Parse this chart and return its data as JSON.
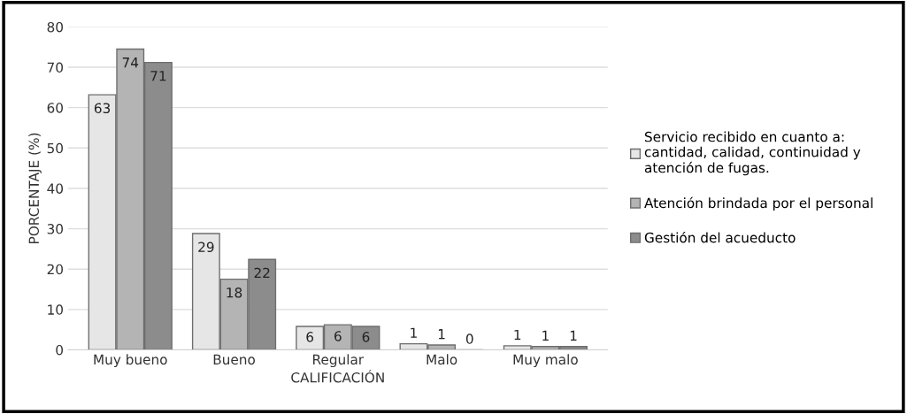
{
  "chart_data": {
    "type": "bar",
    "xlabel": "CALIFICACIÓN",
    "ylabel": "PORCENTAJE (%)",
    "categories": [
      "Muy bueno",
      "Bueno",
      "Regular",
      "Malo",
      "Muy malo"
    ],
    "series": [
      {
        "name": "Servicio recibido en cuanto a:\ncantidad, calidad, continuidad y\natención de fugas.",
        "color": "#e6e6e6",
        "values": [
          63.2,
          28.8,
          5.8,
          1.5,
          1.0
        ],
        "value_labels": [
          "63",
          "29",
          "6",
          "1",
          "1"
        ]
      },
      {
        "name": "Atención brindada por el personal",
        "color": "#b4b4b4",
        "values": [
          74.5,
          17.5,
          6.2,
          1.2,
          0.8
        ],
        "value_labels": [
          "74",
          "18",
          "6",
          "1",
          "1"
        ]
      },
      {
        "name": "Gestión del acueducto",
        "color": "#8c8c8c",
        "values": [
          71.2,
          22.4,
          5.8,
          0,
          0.8
        ],
        "value_labels": [
          "71",
          "22",
          "6",
          "0",
          "1"
        ]
      }
    ],
    "ylim": [
      0,
      80
    ],
    "yticks": [
      0,
      10,
      20,
      30,
      40,
      50,
      60,
      70,
      80
    ],
    "grid": "y",
    "legend": "right"
  }
}
